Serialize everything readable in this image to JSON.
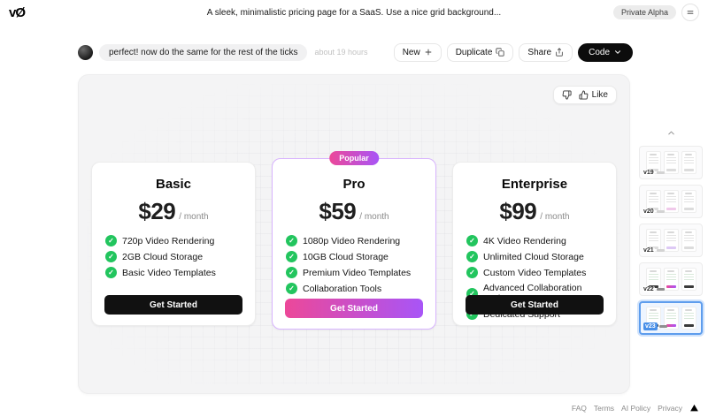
{
  "header": {
    "logo": "vØ",
    "prompt": "A sleek, minimalistic pricing page for a SaaS. Use a nice grid background...",
    "badge": "Private Alpha"
  },
  "thread": {
    "message": "perfect! now do the same for the rest of the ticks",
    "timestamp": "about 19 hours"
  },
  "toolbar": {
    "new_label": "New",
    "duplicate_label": "Duplicate",
    "share_label": "Share",
    "code_label": "Code"
  },
  "preview": {
    "like_label": "Like",
    "plans": [
      {
        "name": "Basic",
        "price": "$29",
        "period": "/ month",
        "popular": false,
        "features": [
          "720p Video Rendering",
          "2GB Cloud Storage",
          "Basic Video Templates"
        ],
        "cta": "Get Started"
      },
      {
        "name": "Pro",
        "price": "$59",
        "period": "/ month",
        "popular": true,
        "badge": "Popular",
        "features": [
          "1080p Video Rendering",
          "10GB Cloud Storage",
          "Premium Video Templates",
          "Collaboration Tools"
        ],
        "cta": "Get Started"
      },
      {
        "name": "Enterprise",
        "price": "$99",
        "period": "/ month",
        "popular": false,
        "features": [
          "4K Video Rendering",
          "Unlimited Cloud Storage",
          "Custom Video Templates",
          "Advanced Collaboration Tools",
          "Dedicated Support"
        ],
        "cta": "Get Started"
      }
    ]
  },
  "versions": {
    "selected": "v23",
    "items": [
      {
        "label": "v19",
        "style": "plain"
      },
      {
        "label": "v20",
        "style": "tint-pink"
      },
      {
        "label": "v21",
        "style": "tint-purple"
      },
      {
        "label": "v22",
        "style": "color"
      },
      {
        "label": "v23",
        "style": "color"
      }
    ]
  },
  "footer": {
    "links": [
      "FAQ",
      "Terms",
      "AI Policy",
      "Privacy"
    ]
  },
  "colors": {
    "gradient_from": "#ec4899",
    "gradient_to": "#a855f7",
    "check_green": "#22c55e",
    "selection_blue": "#5e9ded",
    "cta_black": "#111111"
  }
}
